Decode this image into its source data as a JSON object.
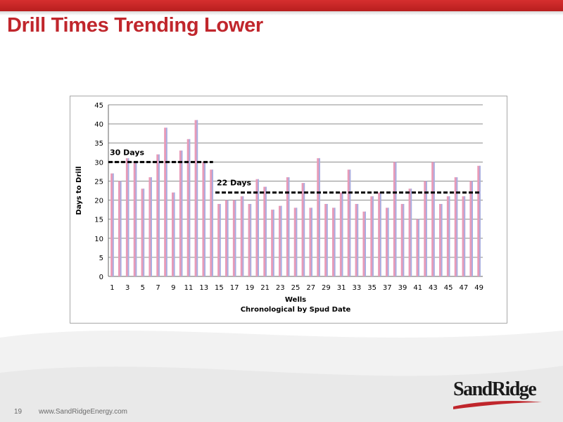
{
  "slide": {
    "title": "Drill Times Trending Lower",
    "page_number": "19",
    "footer_url": "www.SandRidgeEnergy.com",
    "logo_text": "SandRidge"
  },
  "colors": {
    "title_red": "#c0262c",
    "bar_pink": "#e89bb8",
    "bar_blue": "#a4b0e4",
    "gridline": "#8c8c8c",
    "reference_line": "#000000"
  },
  "chart_data": {
    "type": "bar",
    "x": [
      1,
      2,
      3,
      4,
      5,
      6,
      7,
      8,
      9,
      10,
      11,
      12,
      13,
      14,
      15,
      16,
      17,
      18,
      19,
      20,
      21,
      22,
      23,
      24,
      25,
      26,
      27,
      28,
      29,
      30,
      31,
      32,
      33,
      34,
      35,
      36,
      37,
      38,
      39,
      40,
      41,
      42,
      43,
      44,
      45,
      46,
      47,
      48,
      49
    ],
    "x_tick_labels": [
      "1",
      "3",
      "5",
      "7",
      "9",
      "11",
      "13",
      "15",
      "17",
      "19",
      "21",
      "23",
      "25",
      "27",
      "29",
      "31",
      "33",
      "35",
      "37",
      "39",
      "41",
      "43",
      "45",
      "47",
      "49"
    ],
    "values": [
      27,
      25,
      31,
      30,
      23,
      26,
      32,
      39,
      22,
      33,
      36,
      41,
      30,
      28,
      19,
      20,
      20,
      21,
      19,
      25.5,
      23.5,
      17.5,
      18.5,
      26,
      18,
      24.5,
      18,
      31,
      19,
      18,
      22,
      28,
      19,
      17,
      21,
      22,
      18,
      30,
      19,
      23,
      15,
      25,
      30,
      19,
      21,
      26,
      21,
      25,
      29
    ],
    "ylim": [
      0,
      45
    ],
    "y_ticks": [
      0,
      5,
      10,
      15,
      20,
      25,
      30,
      35,
      40,
      45
    ],
    "ylabel": "Days  to Drill",
    "xlabel": "Wells",
    "xlabel_sub": "Chronological  by Spud Date",
    "grid": true,
    "legend": "none",
    "reference_lines": [
      {
        "label": "30 Days",
        "value": 30,
        "x_start": 1,
        "x_end": 14
      },
      {
        "label": "22 Days",
        "value": 22,
        "x_start": 15,
        "x_end": 49
      }
    ]
  }
}
